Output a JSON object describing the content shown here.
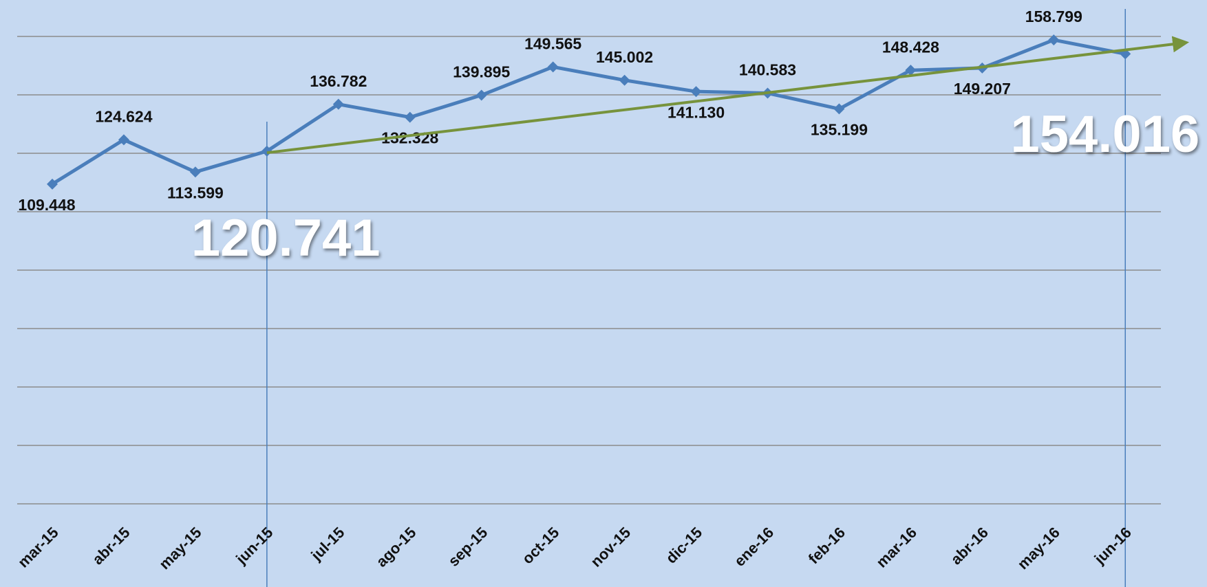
{
  "chart_data": {
    "type": "line",
    "categories": [
      "mar-15",
      "abr-15",
      "may-15",
      "jun-15",
      "jul-15",
      "ago-15",
      "sep-15",
      "oct-15",
      "nov-15",
      "dic-15",
      "ene-16",
      "feb-16",
      "mar-16",
      "abr-16",
      "may-16",
      "jun-16"
    ],
    "series": [
      {
        "color": "#4a7ebb",
        "values": [
          109448,
          124624,
          113599,
          120741,
          136782,
          132328,
          139895,
          149565,
          145002,
          141130,
          140583,
          135199,
          148428,
          149207,
          158799,
          154016
        ],
        "value_labels": [
          "109.448",
          "124.624",
          "113.599",
          "120.741",
          "136.782",
          "132.328",
          "139.895",
          "149.565",
          "145.002",
          "141.130",
          "140.583",
          "135.199",
          "148.428",
          "149.207",
          "158.799",
          "154.016"
        ]
      },
      {
        "color": "#77933c",
        "trendline": true,
        "values": [
          null,
          null,
          null,
          120200,
          123133,
          126067,
          129000,
          131933,
          134867,
          137800,
          140733,
          143667,
          146600,
          149533,
          152467,
          155400
        ]
      }
    ],
    "highlighted_categories": [
      "jun-15",
      "jun-16"
    ],
    "ylim": [
      0,
      160000
    ],
    "yticks": [
      0,
      20000,
      40000,
      60000,
      80000,
      100000,
      120000,
      140000,
      160000
    ],
    "grid": true
  }
}
